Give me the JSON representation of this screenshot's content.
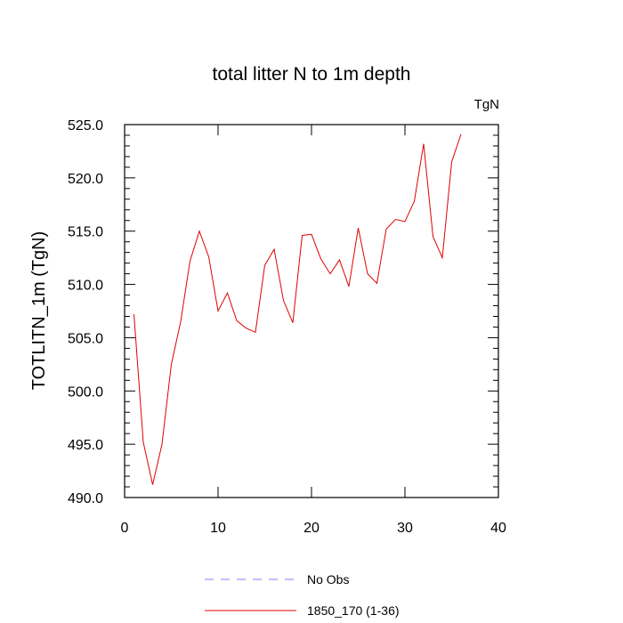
{
  "chart_data": {
    "type": "line",
    "title": "total litter N to 1m depth",
    "units": "TgN",
    "ylabel": "TOTLITN_1m  (TgN)",
    "xlabel": "",
    "xlim": [
      0,
      40
    ],
    "ylim": [
      490,
      525
    ],
    "xticks": [
      0,
      10,
      20,
      30,
      40
    ],
    "xtick_labels": [
      "0",
      "10",
      "20",
      "30",
      "40"
    ],
    "yticks": [
      490,
      495,
      500,
      505,
      510,
      515,
      520,
      525
    ],
    "ytick_labels": [
      "490.0",
      "495.0",
      "500.0",
      "505.0",
      "510.0",
      "515.0",
      "520.0",
      "525.0"
    ],
    "grid": false,
    "legend_position": "bottom",
    "series": [
      {
        "name": "No Obs",
        "color": "#8080ff",
        "dash": "dashed",
        "x": [],
        "values": []
      },
      {
        "name": "1850_170 (1-36)",
        "color": "#e00000",
        "dash": "solid",
        "x": [
          1,
          2,
          3,
          4,
          5,
          6,
          7,
          8,
          9,
          10,
          11,
          12,
          13,
          14,
          15,
          16,
          17,
          18,
          19,
          20,
          21,
          22,
          23,
          24,
          25,
          26,
          27,
          28,
          29,
          30,
          31,
          32,
          33,
          34,
          35,
          36
        ],
        "values": [
          507.2,
          495.2,
          491.2,
          495.0,
          502.5,
          506.5,
          512.2,
          515.0,
          512.6,
          507.5,
          509.2,
          506.6,
          505.9,
          505.5,
          511.8,
          513.3,
          508.5,
          506.4,
          514.6,
          514.7,
          512.4,
          511.0,
          512.3,
          509.8,
          515.3,
          511.0,
          510.1,
          515.2,
          516.1,
          515.9,
          517.8,
          523.2,
          514.5,
          512.5,
          521.5,
          524.1
        ]
      }
    ]
  }
}
